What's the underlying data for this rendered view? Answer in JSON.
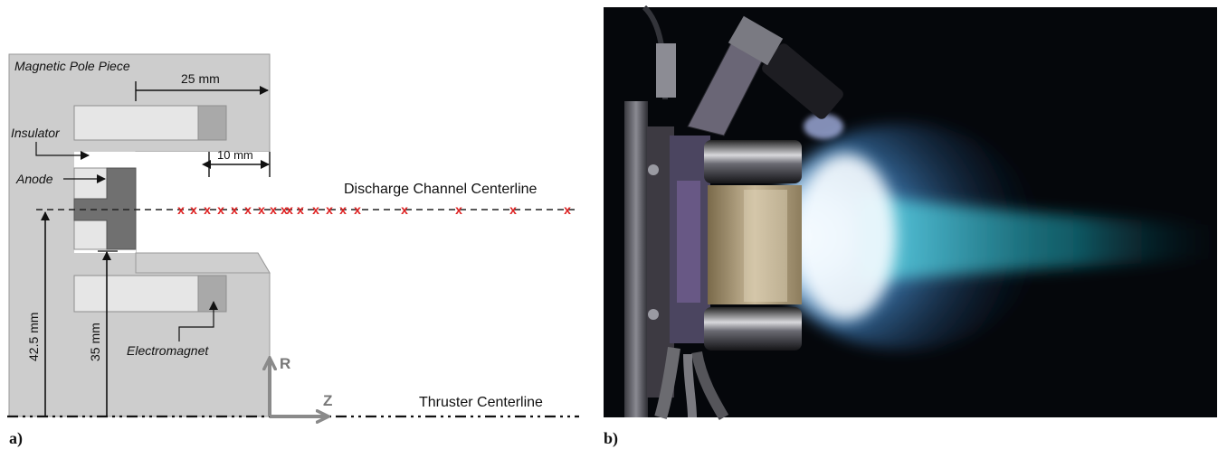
{
  "panel_a": {
    "tag": "a)",
    "labels": {
      "pole_piece": "Magnetic Pole Piece",
      "insulator": "Insulator",
      "anode": "Anode",
      "electromagnet": "Electromagnet",
      "channel_centerline": "Discharge Channel Centerline",
      "thruster_centerline": "Thruster Centerline"
    },
    "dimensions": {
      "top_width": "25 mm",
      "gap_width": "10 mm",
      "radius_outer": "42.5 mm",
      "radius_inner": "35 mm"
    },
    "axes": {
      "radial": "R",
      "axial": "Z"
    },
    "probe_marker": "x",
    "probe_marker_count": 19,
    "colors": {
      "pole_piece": "#cdcdcd",
      "insulator": "#e6e6e6",
      "anode": "#707070",
      "electromagnet": "#a9a9a9",
      "probe_markers": "#dd2020",
      "axis_arrows": "#8a8a8a"
    }
  },
  "panel_b": {
    "tag": "b)",
    "colors": {
      "background": "#05070b",
      "plume_core": "#eaf6ff",
      "plume_mid": "#6fb8ff",
      "plume_tail": "#19a5b5"
    }
  }
}
